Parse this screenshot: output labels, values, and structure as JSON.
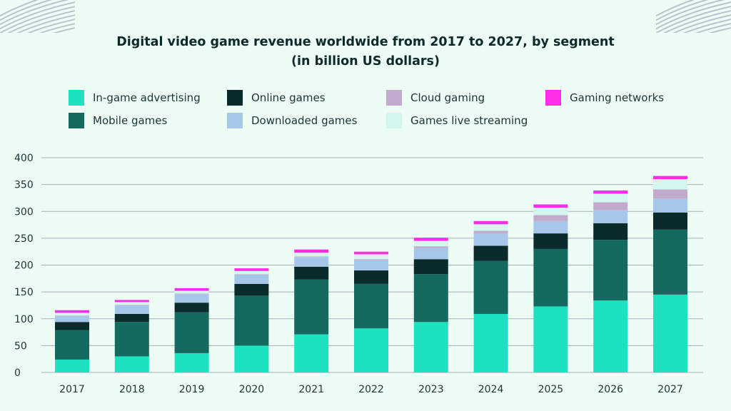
{
  "chart_data": {
    "type": "bar",
    "stacked": true,
    "title_line1": "Digital video game revenue worldwide from 2017 to 2027, by segment",
    "title_line2": "(in billion US dollars)",
    "categories": [
      "2017",
      "2018",
      "2019",
      "2020",
      "2021",
      "2022",
      "2023",
      "2024",
      "2025",
      "2026",
      "2027"
    ],
    "ylim": [
      0,
      400
    ],
    "yticks": [
      "0",
      "50",
      "100",
      "150",
      "200",
      "250",
      "300",
      "350",
      "400"
    ],
    "grid": true,
    "legend_position": "top",
    "series": [
      {
        "name": "In-game advertising",
        "color": "#1de2c2",
        "values": [
          24,
          30,
          36,
          50,
          71,
          82,
          94,
          109,
          123,
          134,
          145
        ]
      },
      {
        "name": "Mobile games",
        "color": "#156a5f",
        "values": [
          55,
          64,
          76,
          93,
          102,
          83,
          89,
          99,
          107,
          113,
          121
        ]
      },
      {
        "name": "Online games",
        "color": "#0b2a2c",
        "values": [
          15,
          15,
          18,
          22,
          24,
          25,
          28,
          28,
          29,
          31,
          32
        ]
      },
      {
        "name": "Downloaded games",
        "color": "#a6c7ea",
        "values": [
          11,
          16,
          16,
          17,
          18,
          19,
          21,
          23,
          23,
          24,
          26
        ]
      },
      {
        "name": "Cloud gaming",
        "color": "#c2aacd",
        "values": [
          1,
          1,
          1,
          1,
          1,
          2,
          3,
          5,
          11,
          15,
          17
        ]
      },
      {
        "name": "Games live streaming",
        "color": "#d3f7ec",
        "values": [
          5,
          5,
          5,
          6,
          7,
          9,
          10,
          12,
          14,
          16,
          19
        ]
      },
      {
        "name": "Gaming networks",
        "color": "#ff2ee6",
        "values": [
          5,
          4,
          5,
          5,
          6,
          5,
          6,
          6,
          6,
          6,
          6
        ]
      }
    ]
  },
  "legend_order": [
    "In-game advertising",
    "Online games",
    "Cloud gaming",
    "Gaming networks",
    "Mobile games",
    "Downloaded games",
    "Games live streaming"
  ],
  "colors": {
    "background": "#eefcf6",
    "gridline": "#9fb3b6",
    "text": "#0d2a2a"
  }
}
